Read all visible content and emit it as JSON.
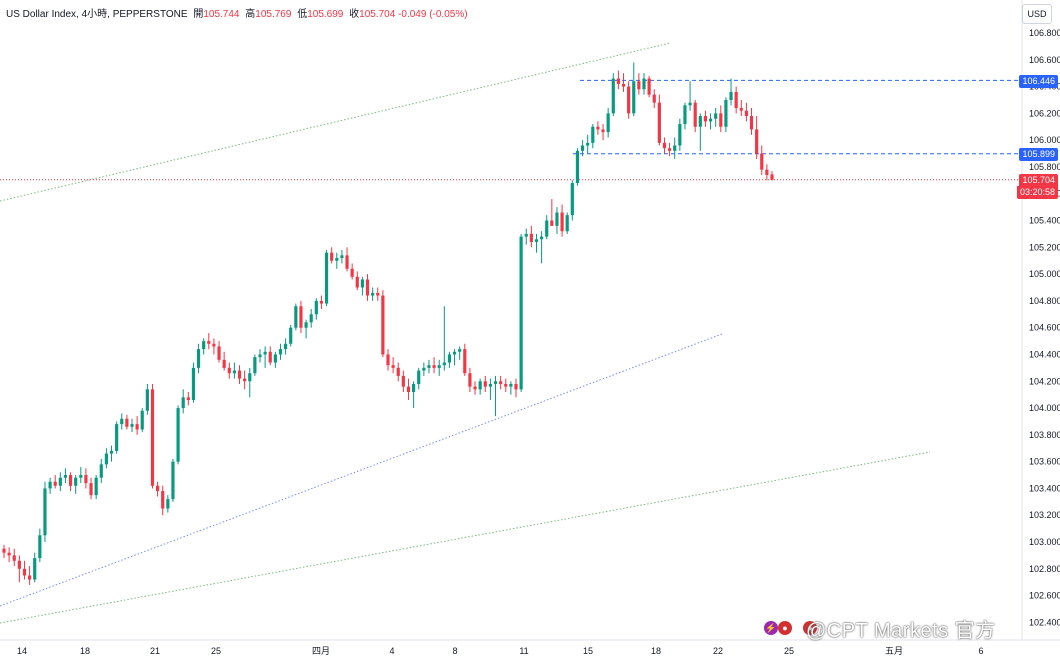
{
  "header": {
    "symbol": "US Dollar Index, 4小時, PEPPERSTONE",
    "open_label": "開",
    "open": "105.744",
    "high_label": "高",
    "high": "105.769",
    "low_label": "低",
    "low": "105.699",
    "close_label": "收",
    "close": "105.704",
    "change": "-0.049 (-0.05%)"
  },
  "currency_button": "USD",
  "price_tags": {
    "upper_level": "106.446",
    "lower_level": "105.899",
    "last_price": "105.704",
    "countdown": "03:20:58"
  },
  "watermark": "@CPT Markets 官方",
  "colors": {
    "up": "#089981",
    "down": "#f23645",
    "level_line": "#2962ff",
    "channel_green": "#7ab97f",
    "channel_blue": "#7b8cf0"
  },
  "chart_data": {
    "type": "candlestick",
    "y_ticks": [
      "106.800",
      "106.600",
      "106.400",
      "106.200",
      "106.000",
      "105.800",
      "105.600",
      "105.400",
      "105.200",
      "105.000",
      "104.800",
      "104.600",
      "104.400",
      "104.200",
      "104.000",
      "103.800",
      "103.600",
      "103.400",
      "103.200",
      "103.000",
      "102.800",
      "102.600",
      "102.400"
    ],
    "ylim": [
      102.32,
      106.9
    ],
    "x_ticks": [
      "14",
      "18",
      "21",
      "25",
      "四月",
      "4",
      "8",
      "11",
      "15",
      "18",
      "22",
      "25",
      "五月",
      "6"
    ],
    "horizontal_levels": [
      106.446,
      105.899
    ],
    "last_price": 105.704,
    "candles": [
      [
        102.95,
        102.98,
        102.88,
        102.92
      ],
      [
        102.92,
        102.96,
        102.85,
        102.9
      ],
      [
        102.9,
        102.95,
        102.82,
        102.86
      ],
      [
        102.86,
        102.9,
        102.7,
        102.8
      ],
      [
        102.8,
        102.86,
        102.72,
        102.75
      ],
      [
        102.75,
        102.82,
        102.68,
        102.72
      ],
      [
        102.72,
        102.92,
        102.7,
        102.88
      ],
      [
        102.88,
        103.1,
        102.85,
        103.05
      ],
      [
        103.05,
        103.45,
        103.0,
        103.4
      ],
      [
        103.4,
        103.48,
        103.36,
        103.45
      ],
      [
        103.45,
        103.5,
        103.4,
        103.42
      ],
      [
        103.42,
        103.52,
        103.38,
        103.48
      ],
      [
        103.48,
        103.55,
        103.44,
        103.5
      ],
      [
        103.5,
        103.52,
        103.38,
        103.42
      ],
      [
        103.42,
        103.5,
        103.36,
        103.48
      ],
      [
        103.48,
        103.56,
        103.44,
        103.5
      ],
      [
        103.5,
        103.55,
        103.4,
        103.44
      ],
      [
        103.44,
        103.48,
        103.32,
        103.35
      ],
      [
        103.35,
        103.5,
        103.32,
        103.48
      ],
      [
        103.48,
        103.62,
        103.44,
        103.58
      ],
      [
        103.58,
        103.7,
        103.55,
        103.66
      ],
      [
        103.66,
        103.72,
        103.6,
        103.68
      ],
      [
        103.68,
        103.9,
        103.66,
        103.88
      ],
      [
        103.88,
        103.96,
        103.84,
        103.92
      ],
      [
        103.92,
        103.95,
        103.84,
        103.86
      ],
      [
        103.86,
        103.92,
        103.82,
        103.88
      ],
      [
        103.88,
        103.94,
        103.8,
        103.84
      ],
      [
        103.84,
        104.0,
        103.82,
        103.98
      ],
      [
        103.98,
        104.18,
        103.95,
        104.14
      ],
      [
        104.14,
        104.18,
        103.4,
        103.42
      ],
      [
        103.42,
        103.45,
        103.34,
        103.38
      ],
      [
        103.38,
        103.42,
        103.2,
        103.25
      ],
      [
        103.25,
        103.35,
        103.22,
        103.32
      ],
      [
        103.32,
        103.62,
        103.3,
        103.6
      ],
      [
        103.6,
        104.02,
        103.58,
        104.0
      ],
      [
        104.0,
        104.14,
        103.96,
        104.08
      ],
      [
        104.08,
        104.12,
        104.02,
        104.06
      ],
      [
        104.06,
        104.34,
        104.04,
        104.3
      ],
      [
        104.3,
        104.48,
        104.26,
        104.44
      ],
      [
        104.44,
        104.52,
        104.4,
        104.5
      ],
      [
        104.5,
        104.56,
        104.44,
        104.48
      ],
      [
        104.48,
        104.52,
        104.4,
        104.46
      ],
      [
        104.46,
        104.5,
        104.34,
        104.36
      ],
      [
        104.36,
        104.42,
        104.28,
        104.3
      ],
      [
        104.3,
        104.34,
        104.22,
        104.26
      ],
      [
        104.26,
        104.34,
        104.22,
        104.28
      ],
      [
        104.28,
        104.32,
        104.18,
        104.22
      ],
      [
        104.22,
        104.28,
        104.14,
        104.2
      ],
      [
        104.2,
        104.3,
        104.08,
        104.26
      ],
      [
        104.26,
        104.4,
        104.24,
        104.38
      ],
      [
        104.38,
        104.44,
        104.34,
        104.4
      ],
      [
        104.4,
        104.46,
        104.3,
        104.42
      ],
      [
        104.42,
        104.46,
        104.32,
        104.34
      ],
      [
        104.34,
        104.42,
        104.3,
        104.4
      ],
      [
        104.4,
        104.48,
        104.36,
        104.44
      ],
      [
        104.44,
        104.52,
        104.4,
        104.48
      ],
      [
        104.48,
        104.62,
        104.46,
        104.6
      ],
      [
        104.6,
        104.78,
        104.58,
        104.76
      ],
      [
        104.76,
        104.8,
        104.56,
        104.6
      ],
      [
        104.6,
        104.66,
        104.52,
        104.64
      ],
      [
        104.64,
        104.74,
        104.6,
        104.7
      ],
      [
        104.7,
        104.82,
        104.66,
        104.8
      ],
      [
        104.8,
        104.84,
        104.74,
        104.78
      ],
      [
        104.78,
        105.18,
        104.76,
        105.16
      ],
      [
        105.16,
        105.2,
        105.08,
        105.1
      ],
      [
        105.1,
        105.16,
        105.04,
        105.12
      ],
      [
        105.12,
        105.18,
        105.08,
        105.14
      ],
      [
        105.14,
        105.2,
        105.02,
        105.04
      ],
      [
        105.04,
        105.08,
        104.96,
        104.98
      ],
      [
        104.98,
        105.02,
        104.88,
        104.9
      ],
      [
        104.9,
        104.98,
        104.84,
        104.96
      ],
      [
        104.96,
        105.0,
        104.8,
        104.84
      ],
      [
        104.84,
        104.9,
        104.8,
        104.86
      ],
      [
        104.86,
        104.9,
        104.8,
        104.84
      ],
      [
        104.84,
        104.88,
        104.38,
        104.4
      ],
      [
        104.4,
        104.44,
        104.28,
        104.32
      ],
      [
        104.32,
        104.38,
        104.26,
        104.3
      ],
      [
        104.3,
        104.34,
        104.2,
        104.24
      ],
      [
        104.24,
        104.28,
        104.12,
        104.16
      ],
      [
        104.16,
        104.22,
        104.06,
        104.12
      ],
      [
        104.12,
        104.2,
        104.0,
        104.18
      ],
      [
        104.18,
        104.3,
        104.14,
        104.28
      ],
      [
        104.28,
        104.34,
        104.24,
        104.3
      ],
      [
        104.3,
        104.36,
        104.26,
        104.32
      ],
      [
        104.32,
        104.38,
        104.26,
        104.3
      ],
      [
        104.3,
        104.36,
        104.24,
        104.32
      ],
      [
        104.32,
        104.76,
        104.28,
        104.34
      ],
      [
        104.34,
        104.42,
        104.3,
        104.4
      ],
      [
        104.4,
        104.44,
        104.32,
        104.42
      ],
      [
        104.42,
        104.46,
        104.36,
        104.44
      ],
      [
        104.44,
        104.48,
        104.24,
        104.26
      ],
      [
        104.26,
        104.3,
        104.12,
        104.16
      ],
      [
        104.16,
        104.2,
        104.1,
        104.14
      ],
      [
        104.14,
        104.22,
        104.1,
        104.2
      ],
      [
        104.2,
        104.24,
        104.12,
        104.16
      ],
      [
        104.16,
        104.22,
        104.06,
        104.18
      ],
      [
        104.18,
        104.24,
        103.94,
        104.2
      ],
      [
        104.2,
        104.24,
        104.14,
        104.18
      ],
      [
        104.18,
        104.22,
        104.12,
        104.16
      ],
      [
        104.16,
        104.2,
        104.1,
        104.18
      ],
      [
        104.18,
        104.22,
        104.08,
        104.14
      ],
      [
        104.14,
        105.3,
        104.12,
        105.28
      ],
      [
        105.28,
        105.34,
        105.22,
        105.3
      ],
      [
        105.3,
        105.36,
        105.2,
        105.24
      ],
      [
        105.24,
        105.3,
        105.16,
        105.26
      ],
      [
        105.26,
        105.32,
        105.08,
        105.28
      ],
      [
        105.28,
        105.44,
        105.26,
        105.4
      ],
      [
        105.4,
        105.56,
        105.36,
        105.36
      ],
      [
        105.36,
        105.5,
        105.3,
        105.46
      ],
      [
        105.46,
        105.52,
        105.28,
        105.32
      ],
      [
        105.32,
        105.46,
        105.3,
        105.44
      ],
      [
        105.44,
        105.7,
        105.4,
        105.68
      ],
      [
        105.68,
        105.94,
        105.66,
        105.92
      ],
      [
        105.92,
        106.0,
        105.88,
        105.96
      ],
      [
        105.96,
        106.04,
        105.9,
        105.98
      ],
      [
        105.98,
        106.12,
        105.94,
        106.1
      ],
      [
        106.1,
        106.14,
        106.04,
        106.08
      ],
      [
        106.08,
        106.12,
        106.0,
        106.06
      ],
      [
        106.06,
        106.24,
        106.02,
        106.2
      ],
      [
        106.2,
        106.5,
        106.18,
        106.46
      ],
      [
        106.46,
        106.52,
        106.38,
        106.42
      ],
      [
        106.42,
        106.5,
        106.36,
        106.4
      ],
      [
        106.4,
        106.44,
        106.16,
        106.2
      ],
      [
        106.2,
        106.58,
        106.18,
        106.44
      ],
      [
        106.44,
        106.5,
        106.34,
        106.38
      ],
      [
        106.38,
        106.5,
        106.34,
        106.46
      ],
      [
        106.46,
        106.48,
        106.32,
        106.34
      ],
      [
        106.34,
        106.38,
        106.24,
        106.28
      ],
      [
        106.28,
        106.34,
        105.96,
        105.98
      ],
      [
        105.98,
        106.02,
        105.9,
        105.94
      ],
      [
        105.94,
        105.98,
        105.88,
        105.92
      ],
      [
        105.92,
        106.02,
        105.86,
        105.96
      ],
      [
        105.96,
        106.16,
        105.92,
        106.12
      ],
      [
        106.12,
        106.28,
        106.08,
        106.26
      ],
      [
        106.26,
        106.44,
        106.22,
        106.28
      ],
      [
        106.28,
        106.3,
        106.06,
        106.1
      ],
      [
        106.1,
        106.2,
        105.92,
        106.18
      ],
      [
        106.18,
        106.22,
        106.1,
        106.14
      ],
      [
        106.14,
        106.2,
        106.08,
        106.16
      ],
      [
        106.16,
        106.24,
        106.1,
        106.2
      ],
      [
        106.2,
        106.26,
        106.06,
        106.1
      ],
      [
        106.1,
        106.32,
        106.06,
        106.3
      ],
      [
        106.3,
        106.46,
        106.26,
        106.36
      ],
      [
        106.36,
        106.4,
        106.2,
        106.24
      ],
      [
        106.24,
        106.3,
        106.18,
        106.22
      ],
      [
        106.22,
        106.28,
        106.14,
        106.18
      ],
      [
        106.18,
        106.24,
        106.04,
        106.08
      ],
      [
        106.08,
        106.18,
        105.86,
        105.9
      ],
      [
        105.9,
        105.96,
        105.74,
        105.78
      ],
      [
        105.78,
        105.82,
        105.7,
        105.74
      ],
      [
        105.744,
        105.769,
        105.699,
        105.704
      ]
    ]
  }
}
